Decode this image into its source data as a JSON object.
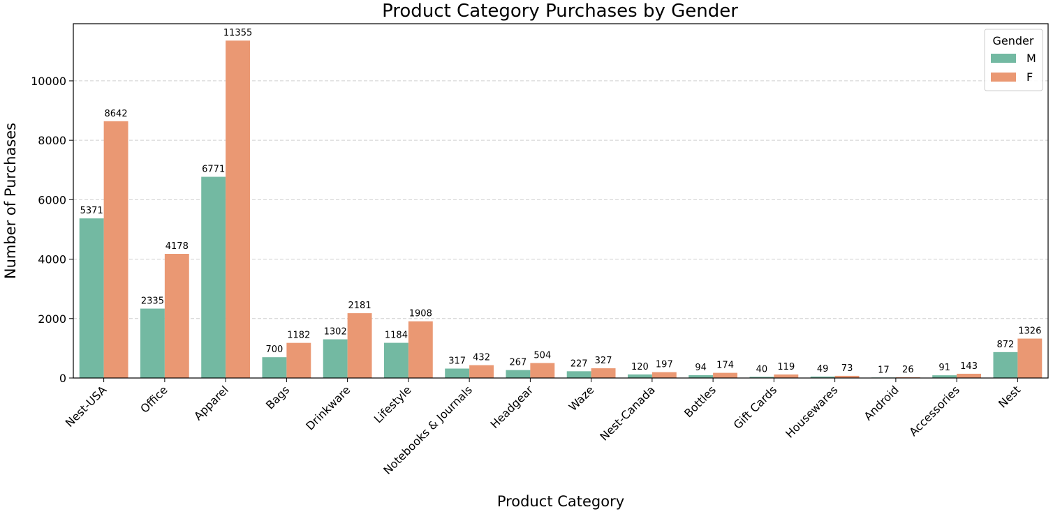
{
  "chart_data": {
    "type": "bar",
    "title": "Product Category Purchases by Gender",
    "xlabel": "Product Category",
    "ylabel": "Number of Purchases",
    "categories": [
      "Nest-USA",
      "Office",
      "Apparel",
      "Bags",
      "Drinkware",
      "Lifestyle",
      "Notebooks & Journals",
      "Headgear",
      "Waze",
      "Nest-Canada",
      "Bottles",
      "Gift Cards",
      "Housewares",
      "Android",
      "Accessories",
      "Nest"
    ],
    "series": [
      {
        "name": "M",
        "color": "#73b9a2",
        "values": [
          5371,
          2335,
          6771,
          700,
          1302,
          1184,
          317,
          267,
          227,
          120,
          94,
          40,
          49,
          17,
          91,
          872
        ]
      },
      {
        "name": "F",
        "color": "#ea9873",
        "values": [
          8642,
          4178,
          11355,
          1182,
          2181,
          1908,
          432,
          504,
          327,
          197,
          174,
          119,
          73,
          26,
          143,
          1326
        ]
      }
    ],
    "yticks": [
      0,
      2000,
      4000,
      6000,
      8000,
      10000
    ],
    "ylim": [
      0,
      11923
    ],
    "grid": "horizontal dashed",
    "legend": {
      "title": "Gender",
      "position": "top-right"
    }
  }
}
